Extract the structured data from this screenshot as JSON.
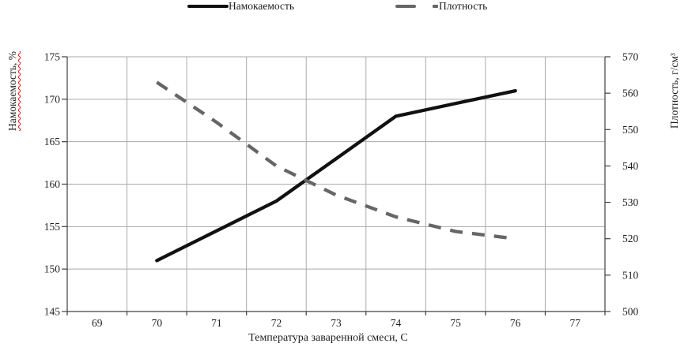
{
  "colors": {
    "solid_line": "#111111",
    "dashed_line": "#666666",
    "gridline": "#aaaaaa",
    "axis": "#404040",
    "text": "#1f1f1f",
    "spellcheck_underline": "#ee1111"
  },
  "chart_data": {
    "type": "line",
    "title": "",
    "grid": true,
    "legend_position": "top",
    "categories": [
      "69",
      "70",
      "71",
      "72",
      "73",
      "74",
      "75",
      "76",
      "77"
    ],
    "x_start": 69,
    "xlabel": "Температура заваренной смеси, С",
    "left_axis": {
      "label": "Намокаемость, %",
      "min": 145,
      "max": 175,
      "ticks": [
        145,
        150,
        155,
        160,
        165,
        170,
        175
      ]
    },
    "right_axis": {
      "label": "Плотность, г/см³",
      "min": 500,
      "max": 570,
      "ticks": [
        500,
        510,
        520,
        530,
        540,
        550,
        560,
        570
      ]
    },
    "series": [
      {
        "name": "Намокаемость",
        "axis": "left",
        "style": "solid",
        "color": "#111111",
        "x": [
          70,
          71,
          72,
          73,
          74,
          75,
          76
        ],
        "values": [
          151,
          154.5,
          158,
          163,
          168,
          169.5,
          171
        ]
      },
      {
        "name": "Плотность",
        "axis": "right",
        "style": "dashed",
        "color": "#666666",
        "x": [
          70,
          71,
          72,
          73,
          74,
          75,
          76
        ],
        "values": [
          563,
          552,
          540,
          532,
          526,
          522,
          520
        ]
      }
    ]
  }
}
